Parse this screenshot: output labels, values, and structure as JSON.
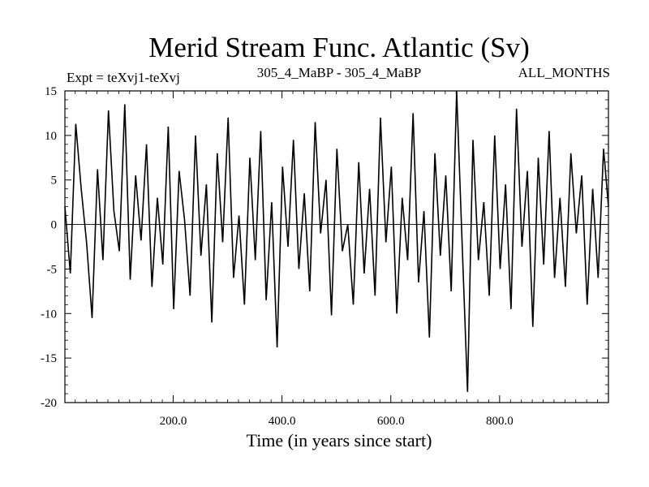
{
  "chart_data": {
    "type": "line",
    "title": "Merid Stream Func. Atlantic (Sv)",
    "subtitle_left": "Expt = teXvj1-teXvj",
    "subtitle_center": "305_4_MaBP - 305_4_MaBP",
    "subtitle_right": "ALL_MONTHS",
    "xlabel": "Time (in years since start)",
    "ylabel": "",
    "xlim": [
      1,
      1000
    ],
    "ylim": [
      -20,
      15
    ],
    "xticks": [
      200,
      400,
      600,
      800
    ],
    "xtick_labels": [
      "200.0",
      "400.0",
      "600.0",
      "800.0"
    ],
    "yticks": [
      15,
      10,
      5,
      0,
      -5,
      -10,
      -15,
      -20
    ],
    "ytick_labels": [
      "15",
      "10",
      "5",
      "0",
      "-5",
      "-10",
      "-15",
      "-20"
    ],
    "grid": false,
    "legend": "none",
    "line_color": "#000000",
    "series": [
      {
        "name": "",
        "x": [
          1,
          11,
          21,
          31,
          41,
          51,
          61,
          71,
          81,
          91,
          101,
          111,
          121,
          131,
          141,
          151,
          161,
          171,
          181,
          191,
          201,
          211,
          221,
          231,
          241,
          251,
          261,
          271,
          281,
          291,
          301,
          311,
          321,
          331,
          341,
          351,
          361,
          371,
          381,
          391,
          401,
          411,
          421,
          431,
          441,
          451,
          461,
          471,
          481,
          491,
          501,
          511,
          521,
          531,
          541,
          551,
          561,
          571,
          581,
          591,
          601,
          611,
          621,
          631,
          641,
          651,
          661,
          671,
          681,
          691,
          701,
          711,
          721,
          731,
          741,
          751,
          761,
          771,
          781,
          791,
          801,
          811,
          821,
          831,
          841,
          851,
          861,
          871,
          881,
          891,
          901,
          911,
          921,
          931,
          941,
          951,
          961,
          971,
          981,
          991,
          1000
        ],
        "y": [
          2.0,
          -5.5,
          11.3,
          4.0,
          -2.1,
          -10.5,
          6.2,
          -4.0,
          12.8,
          1.5,
          -3.0,
          13.5,
          -6.2,
          5.5,
          -1.8,
          9.0,
          -7.0,
          3.0,
          -4.5,
          11.0,
          -9.5,
          6.0,
          0.5,
          -8.0,
          10.0,
          -3.5,
          4.5,
          -11.0,
          8.0,
          -2.0,
          12.0,
          -6.0,
          1.0,
          -9.0,
          7.5,
          -4.0,
          10.5,
          -8.5,
          2.5,
          -13.8,
          6.5,
          -2.5,
          9.5,
          -5.0,
          3.5,
          -7.5,
          11.5,
          -1.0,
          5.0,
          -10.2,
          8.5,
          -3.0,
          0.0,
          -9.0,
          7.0,
          -5.5,
          4.0,
          -8.0,
          12.0,
          -2.0,
          6.5,
          -10.0,
          3.0,
          -4.0,
          12.5,
          -6.5,
          1.5,
          -12.7,
          8.0,
          -3.5,
          5.5,
          -7.5,
          15.0,
          -2.0,
          -18.8,
          9.5,
          -4.0,
          2.5,
          -8.0,
          10.0,
          -5.0,
          4.5,
          -9.5,
          13.0,
          -2.5,
          6.0,
          -11.5,
          7.5,
          -4.5,
          10.5,
          -6.0,
          3.0,
          -7.0,
          8.0,
          -1.0,
          5.5,
          -9.0,
          4.0,
          -6.0,
          8.5,
          2.0
        ]
      }
    ]
  }
}
